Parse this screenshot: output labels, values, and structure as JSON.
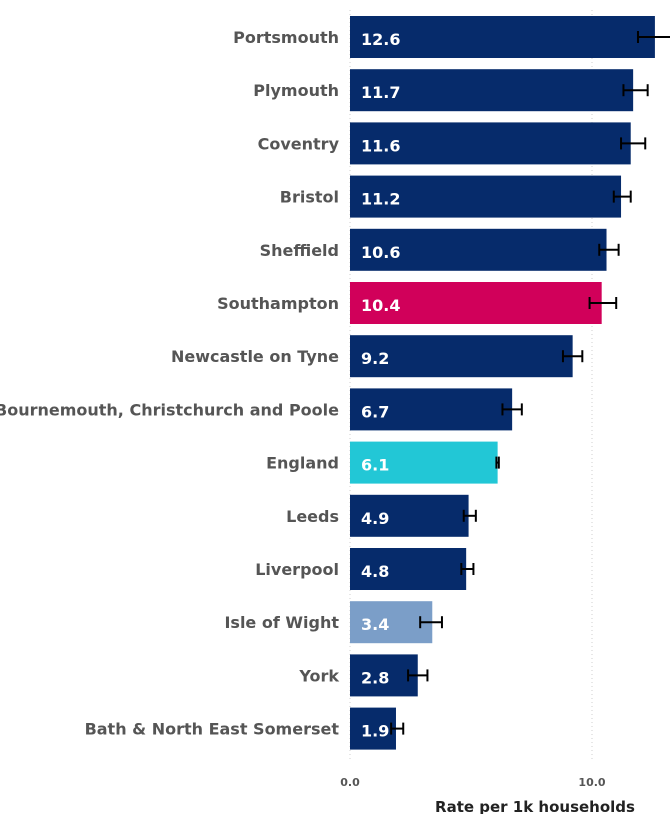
{
  "chart_data": {
    "type": "bar",
    "orientation": "horizontal",
    "title": "",
    "xlabel": "Rate per 1k households",
    "ylabel": "",
    "xlim": [
      0,
      12.6
    ],
    "xticks": [
      0,
      10
    ],
    "xtick_labels": [
      "0.0",
      "10.0"
    ],
    "grid": "vertical dotted at x-ticks",
    "categories": [
      "Portsmouth",
      "Plymouth",
      "Coventry",
      "Bristol",
      "Sheffield",
      "Southampton",
      "Newcastle on Tyne",
      "Bournemouth, Christchurch and Poole",
      "England",
      "Leeds",
      "Liverpool",
      "Isle of Wight",
      "York",
      "Bath & North East Somerset"
    ],
    "values": [
      12.6,
      11.7,
      11.6,
      11.2,
      10.6,
      10.4,
      9.2,
      6.7,
      6.1,
      4.9,
      4.8,
      3.4,
      2.8,
      1.9
    ],
    "value_labels": [
      "12.6",
      "11.7",
      "11.6",
      "11.2",
      "10.6",
      "10.4",
      "9.2",
      "6.7",
      "6.1",
      "4.9",
      "4.8",
      "3.4",
      "2.8",
      "1.9"
    ],
    "error_low": [
      11.9,
      11.3,
      11.2,
      10.9,
      10.3,
      9.9,
      8.8,
      6.3,
      6.05,
      4.7,
      4.6,
      2.9,
      2.4,
      1.7
    ],
    "error_high": [
      13.4,
      12.3,
      12.2,
      11.6,
      11.1,
      11.0,
      9.6,
      7.1,
      6.15,
      5.2,
      5.1,
      3.8,
      3.2,
      2.2
    ],
    "colors": [
      "#062b6b",
      "#062b6b",
      "#062b6b",
      "#062b6b",
      "#062b6b",
      "#d1005a",
      "#062b6b",
      "#062b6b",
      "#22c7d6",
      "#062b6b",
      "#062b6b",
      "#7b9ec8",
      "#062b6b",
      "#062b6b"
    ]
  }
}
